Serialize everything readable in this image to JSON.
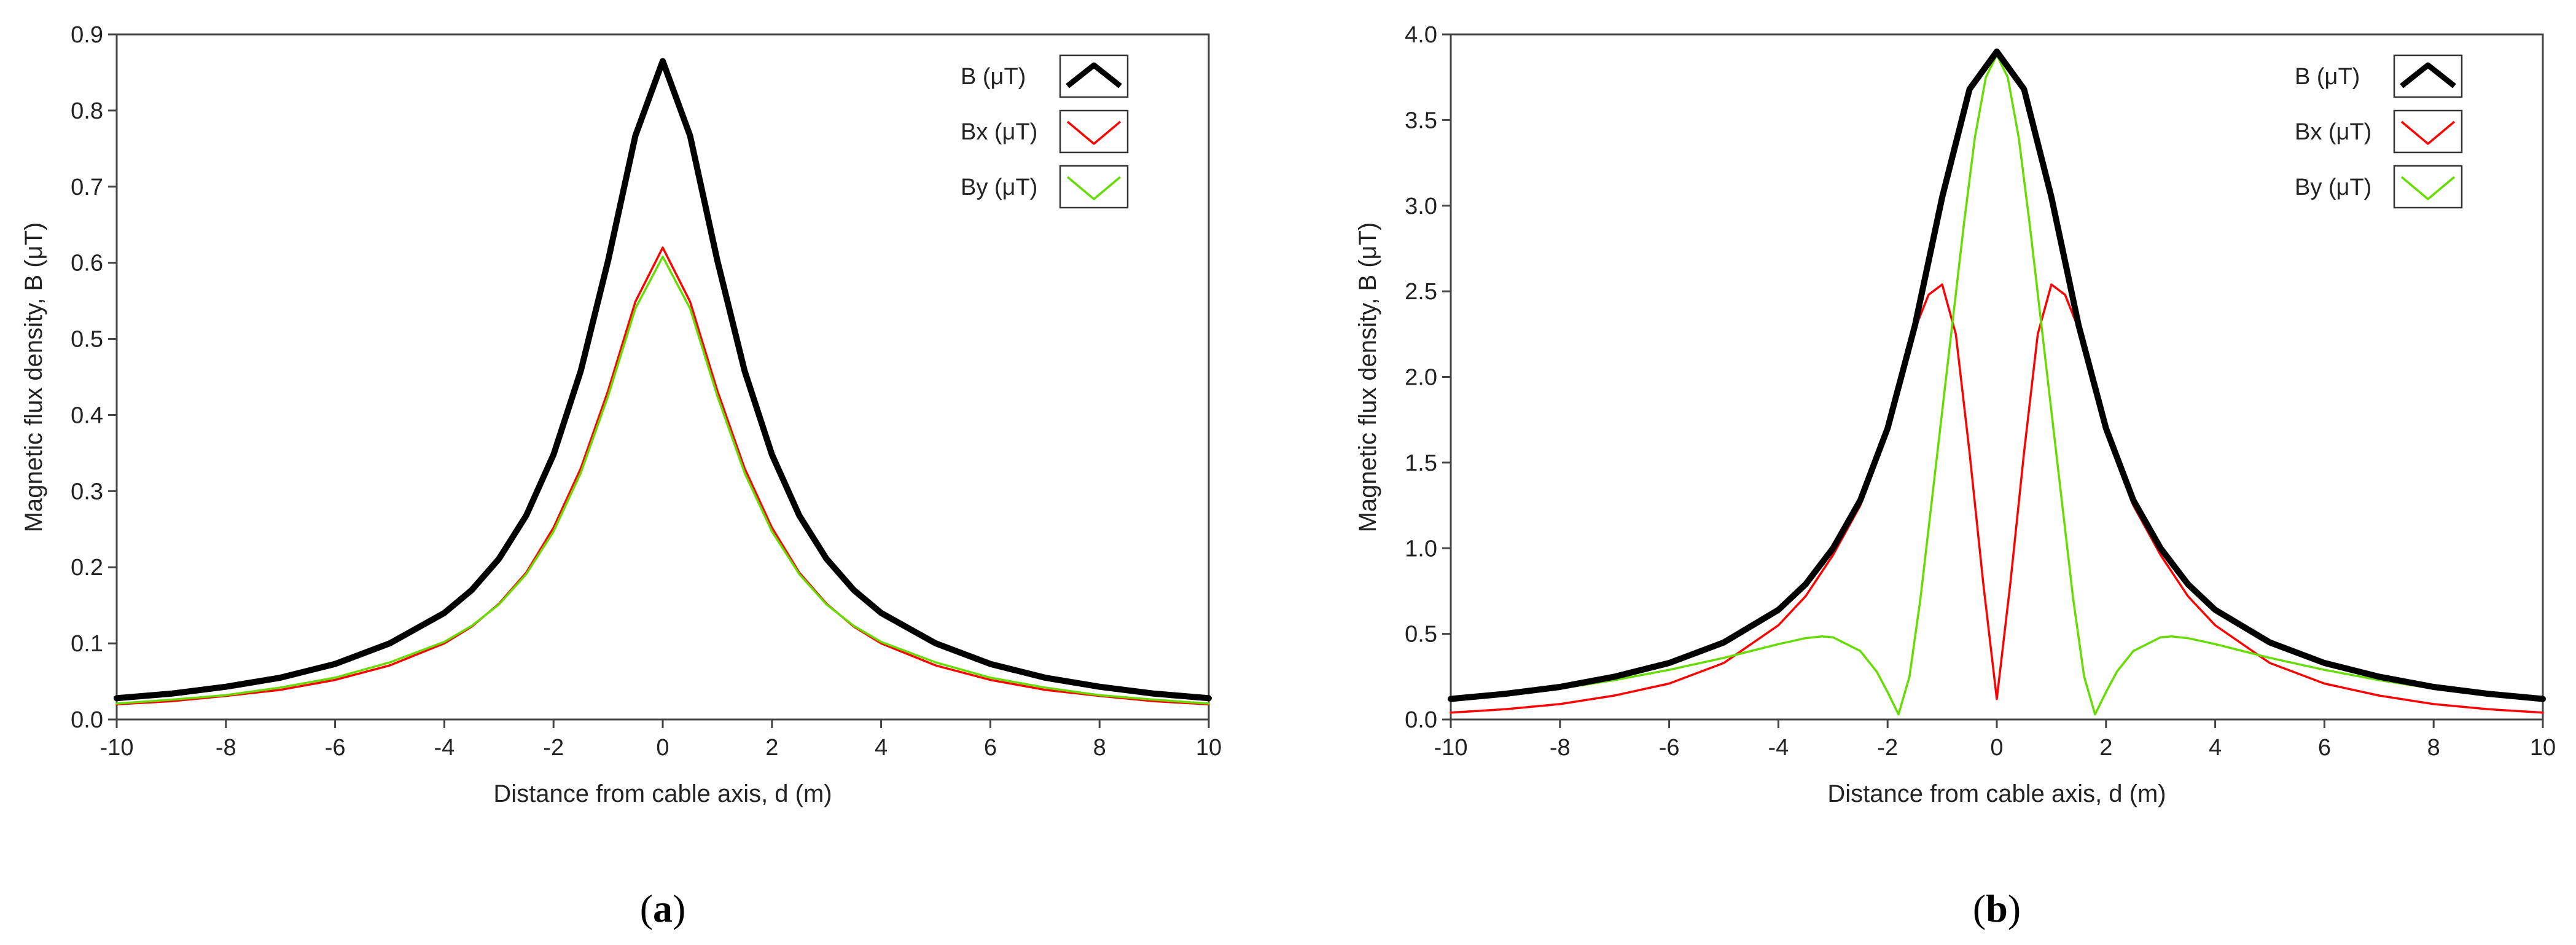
{
  "chart_data": [
    {
      "type": "line",
      "panel": "a",
      "caption": "(a)",
      "caption_letter": "a",
      "xlabel": "Distance from cable axis, d (m)",
      "ylabel": "Magnetic flux density, B (μT)",
      "xlim": [
        -10,
        10
      ],
      "ylim": [
        0,
        0.9
      ],
      "xticks": [
        "-10",
        "-8",
        "-6",
        "-4",
        "-2",
        "0",
        "2",
        "4",
        "6",
        "8",
        "10"
      ],
      "yticks": [
        "0.0",
        "0.1",
        "0.2",
        "0.3",
        "0.4",
        "0.5",
        "0.6",
        "0.7",
        "0.8",
        "0.9"
      ],
      "grid": false,
      "legend_position": "top-right",
      "series": [
        {
          "name": "B (μT)",
          "color": "#000000",
          "x": [
            -10,
            -9,
            -8,
            -7,
            -6,
            -5,
            -4,
            -3.5,
            -3,
            -2.5,
            -2,
            -1.5,
            -1,
            -0.5,
            0,
            0.5,
            1,
            1.5,
            2,
            2.5,
            3,
            3.5,
            4,
            5,
            6,
            7,
            8,
            9,
            10
          ],
          "y": [
            0.028,
            0.034,
            0.043,
            0.055,
            0.073,
            0.1,
            0.14,
            0.17,
            0.211,
            0.268,
            0.348,
            0.458,
            0.603,
            0.767,
            0.865,
            0.767,
            0.603,
            0.458,
            0.348,
            0.268,
            0.211,
            0.17,
            0.14,
            0.1,
            0.073,
            0.055,
            0.043,
            0.034,
            0.028
          ]
        },
        {
          "name": "Bx (μT)",
          "color": "#ff0000",
          "x": [
            -10,
            -9,
            -8,
            -7,
            -6,
            -5,
            -4,
            -3.5,
            -3,
            -2.5,
            -2,
            -1.5,
            -1,
            -0.5,
            0,
            0.5,
            1,
            1.5,
            2,
            2.5,
            3,
            3.5,
            4,
            5,
            6,
            7,
            8,
            9,
            10
          ],
          "y": [
            0.02,
            0.024,
            0.031,
            0.039,
            0.052,
            0.071,
            0.1,
            0.122,
            0.152,
            0.193,
            0.252,
            0.33,
            0.432,
            0.549,
            0.62,
            0.549,
            0.432,
            0.33,
            0.252,
            0.193,
            0.152,
            0.122,
            0.1,
            0.071,
            0.052,
            0.039,
            0.031,
            0.024,
            0.02
          ]
        },
        {
          "name": "By (μT)",
          "color": "#66dd00",
          "x": [
            -10,
            -9,
            -8,
            -7,
            -6,
            -5,
            -4,
            -3.5,
            -3,
            -2.5,
            -2,
            -1.5,
            -1,
            -0.5,
            0,
            0.5,
            1,
            1.5,
            2,
            2.5,
            3,
            3.5,
            4,
            5,
            6,
            7,
            8,
            9,
            10
          ],
          "y": [
            0.021,
            0.026,
            0.032,
            0.042,
            0.055,
            0.075,
            0.102,
            0.123,
            0.151,
            0.191,
            0.247,
            0.324,
            0.425,
            0.54,
            0.608,
            0.54,
            0.425,
            0.324,
            0.247,
            0.191,
            0.151,
            0.123,
            0.102,
            0.075,
            0.055,
            0.042,
            0.032,
            0.026,
            0.021
          ]
        }
      ]
    },
    {
      "type": "line",
      "panel": "b",
      "caption": "(b)",
      "caption_letter": "b",
      "xlabel": "Distance from cable axis, d (m)",
      "ylabel": "Magnetic flux density, B (μT)",
      "xlim": [
        -10,
        10
      ],
      "ylim": [
        0,
        4.0
      ],
      "xticks": [
        "-10",
        "-8",
        "-6",
        "-4",
        "-2",
        "0",
        "2",
        "4",
        "6",
        "8",
        "10"
      ],
      "yticks": [
        "0.0",
        "0.5",
        "1.0",
        "1.5",
        "2.0",
        "2.5",
        "3.0",
        "3.5",
        "4.0"
      ],
      "grid": false,
      "legend_position": "top-right",
      "series": [
        {
          "name": "B (μT)",
          "color": "#000000",
          "x": [
            -10,
            -9,
            -8,
            -7,
            -6,
            -5,
            -4,
            -3.5,
            -3,
            -2.5,
            -2,
            -1.5,
            -1,
            -0.5,
            0,
            0.5,
            1,
            1.5,
            2,
            2.5,
            3,
            3.5,
            4,
            5,
            6,
            7,
            8,
            9,
            10
          ],
          "y": [
            0.12,
            0.15,
            0.19,
            0.25,
            0.33,
            0.45,
            0.64,
            0.79,
            1.0,
            1.28,
            1.7,
            2.3,
            3.05,
            3.68,
            3.9,
            3.68,
            3.05,
            2.3,
            1.7,
            1.28,
            1.0,
            0.79,
            0.64,
            0.45,
            0.33,
            0.25,
            0.19,
            0.15,
            0.12
          ]
        },
        {
          "name": "Bx (μT)",
          "color": "#ff0000",
          "x": [
            -10,
            -9,
            -8,
            -7,
            -6,
            -5,
            -4,
            -3.5,
            -3,
            -2.5,
            -2,
            -1.75,
            -1.5,
            -1.25,
            -1,
            -0.75,
            -0.5,
            -0.25,
            0,
            0.25,
            0.5,
            0.75,
            1,
            1.25,
            1.5,
            1.75,
            2,
            2.5,
            3,
            3.5,
            4,
            5,
            6,
            7,
            8,
            9,
            10
          ],
          "y": [
            0.04,
            0.06,
            0.09,
            0.14,
            0.21,
            0.33,
            0.55,
            0.72,
            0.96,
            1.25,
            1.68,
            1.98,
            2.28,
            2.48,
            2.54,
            2.25,
            1.56,
            0.8,
            0.12,
            0.8,
            1.56,
            2.25,
            2.54,
            2.48,
            2.28,
            1.98,
            1.68,
            1.25,
            0.96,
            0.72,
            0.55,
            0.33,
            0.21,
            0.14,
            0.09,
            0.06,
            0.04
          ]
        },
        {
          "name": "By (μT)",
          "color": "#66dd00",
          "x": [
            -10,
            -9,
            -8,
            -7,
            -6,
            -5,
            -4.5,
            -4,
            -3.5,
            -3.2,
            -3,
            -2.5,
            -2.2,
            -2,
            -1.8,
            -1.6,
            -1.4,
            -1.2,
            -1,
            -0.8,
            -0.6,
            -0.4,
            -0.2,
            0,
            0.2,
            0.4,
            0.6,
            0.8,
            1,
            1.2,
            1.4,
            1.6,
            1.8,
            2,
            2.2,
            2.5,
            3,
            3.2,
            3.5,
            4,
            4.5,
            5,
            6,
            7,
            8,
            9,
            10
          ],
          "y": [
            0.11,
            0.14,
            0.18,
            0.23,
            0.29,
            0.36,
            0.4,
            0.44,
            0.475,
            0.485,
            0.48,
            0.4,
            0.28,
            0.16,
            0.03,
            0.25,
            0.7,
            1.25,
            1.8,
            2.35,
            2.9,
            3.4,
            3.75,
            3.88,
            3.75,
            3.4,
            2.9,
            2.35,
            1.8,
            1.25,
            0.7,
            0.25,
            0.03,
            0.16,
            0.28,
            0.4,
            0.48,
            0.485,
            0.475,
            0.44,
            0.4,
            0.36,
            0.29,
            0.23,
            0.18,
            0.14,
            0.11
          ]
        }
      ]
    }
  ]
}
